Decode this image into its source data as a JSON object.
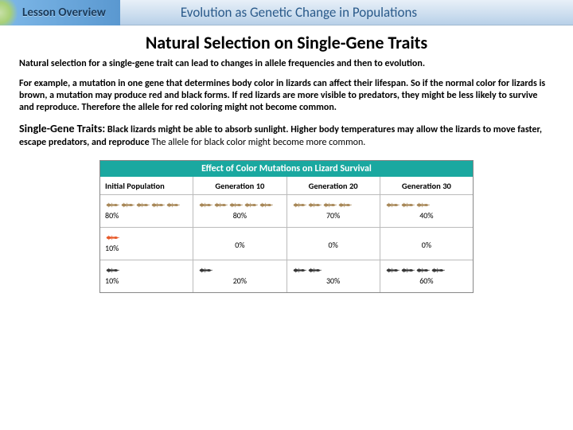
{
  "header": {
    "badge": "Lesson Overview",
    "title": "Evolution as Genetic Change in Populations"
  },
  "main_title": "Natural Selection on Single-Gene Traits",
  "para1": "Natural selection for a single-gene trait can lead to changes in allele frequencies and then to evolution.",
  "para2": "For example, a mutation in one gene that determines body color in lizards can affect their lifespan. So if the normal color for lizards is brown, a mutation may produce red and black forms. If red lizards are more visible to predators, they might be less likely to survive and reproduce. Therefore the allele for red coloring might not become common.",
  "para3_lead": "Single-Gene Traits:",
  "para3_bold": " Black lizards might be able to absorb sunlight. Higher body temperatures may allow the lizards to move faster, escape predators, and reproduce ",
  "para3_rest": "The allele for black color might become more common.",
  "chart": {
    "title": "Effect of Color Mutations on Lizard Survival",
    "title_bg": "#1aa8a0",
    "columns": [
      "Initial Population",
      "Generation 10",
      "Generation 20",
      "Generation 30"
    ],
    "rows": [
      {
        "color": "#a88858",
        "counts": [
          5,
          5,
          4,
          3
        ],
        "pcts": [
          "80%",
          "80%",
          "70%",
          "40%"
        ]
      },
      {
        "color": "#e85a2a",
        "counts": [
          1,
          0,
          0,
          0
        ],
        "pcts": [
          "10%",
          "0%",
          "0%",
          "0%"
        ]
      },
      {
        "color": "#383838",
        "counts": [
          1,
          1,
          2,
          4
        ],
        "pcts": [
          "10%",
          "20%",
          "30%",
          "60%"
        ]
      }
    ]
  }
}
